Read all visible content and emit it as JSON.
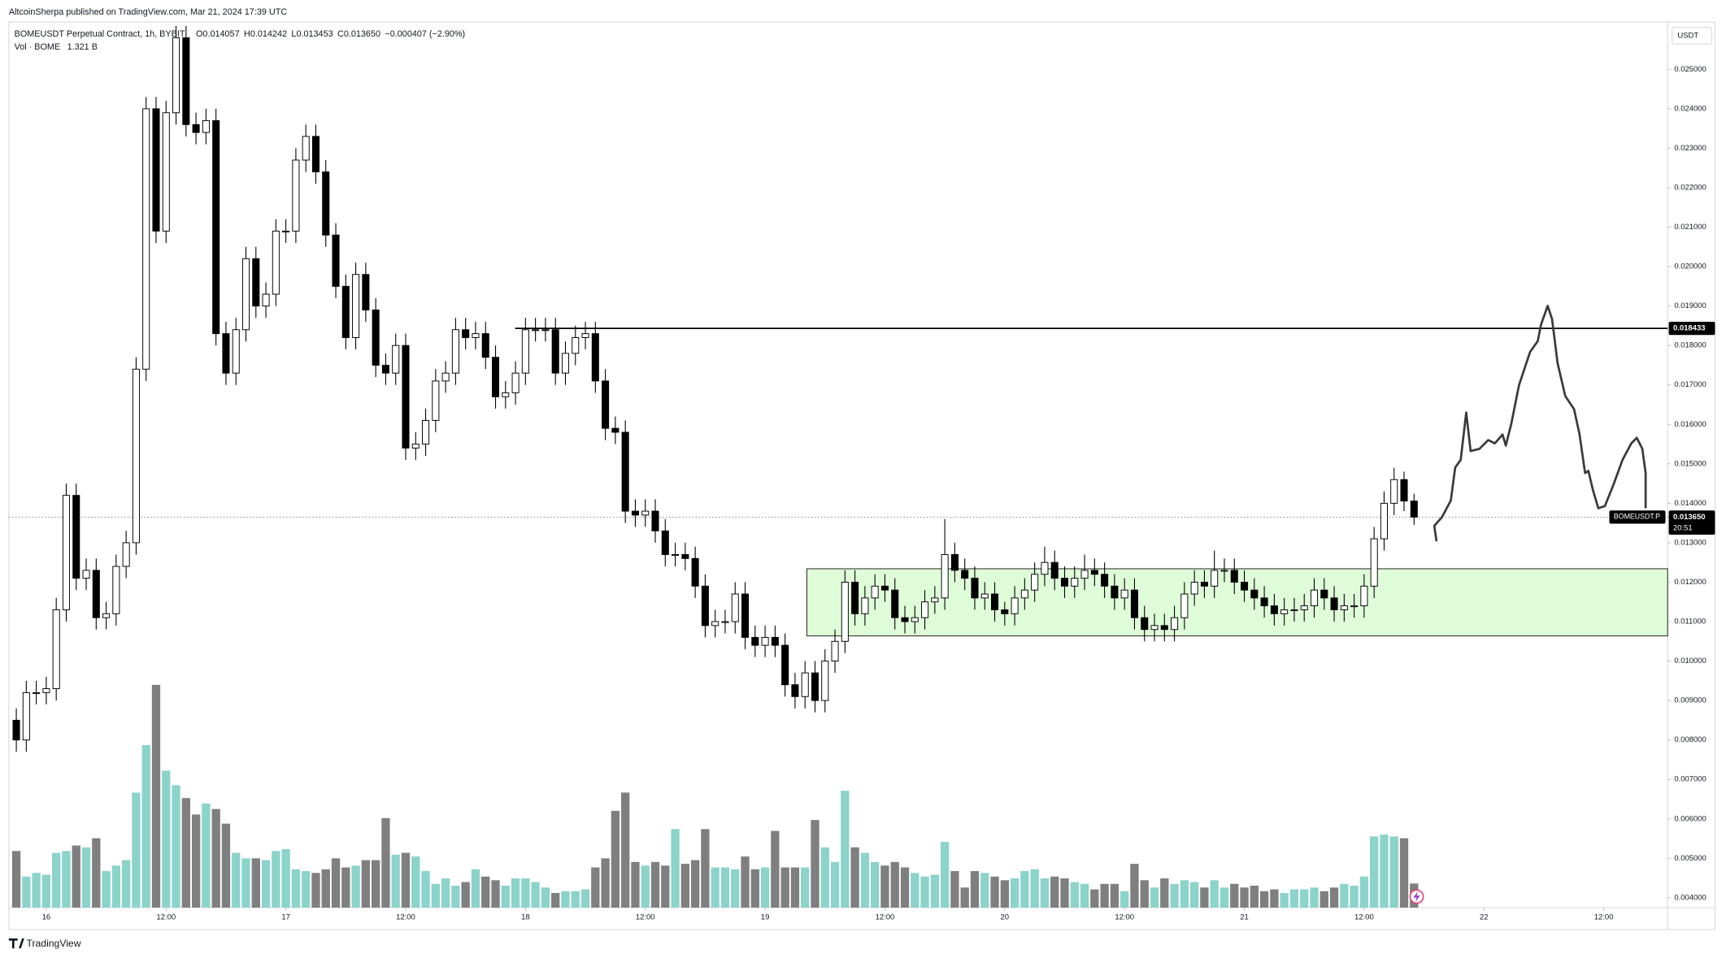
{
  "header": {
    "publisher": "AltcoinSherpa published on TradingView.com, Mar 21, 2024 17:39 UTC",
    "symbol": "BOMEUSDT Perpetual Contract, 1h, BYBIT",
    "ohlc": [
      "O0.014057",
      "H0.014242",
      "L0.013453",
      "C0.013650",
      "−0.000407 (−2.90%)"
    ],
    "volume_label": "Vol · BOME",
    "volume_value": "1.321 B"
  },
  "currency": "USDT",
  "branding": "TradingView",
  "chart_data": {
    "type": "candlestick",
    "x": [
      -3,
      -2,
      -1,
      0,
      1,
      2,
      3,
      4,
      5,
      6,
      7,
      8,
      9,
      10,
      11,
      12,
      13,
      14,
      15,
      16,
      17,
      18,
      19,
      20,
      21,
      22,
      23,
      24,
      25,
      26,
      27,
      28,
      29,
      30,
      31,
      32,
      33,
      34,
      35,
      36,
      37,
      38,
      39,
      40,
      41,
      42,
      43,
      44,
      45,
      46,
      47,
      48,
      49,
      50,
      51,
      52,
      53,
      54,
      55,
      56,
      57,
      58,
      59,
      60,
      61,
      62,
      63,
      64,
      65,
      66,
      67,
      68,
      69,
      70,
      71,
      72,
      73,
      74,
      75,
      76,
      77,
      78,
      79,
      80,
      81,
      82,
      83,
      84,
      85,
      86,
      87,
      88,
      89,
      90,
      91,
      92,
      93,
      94,
      95,
      96,
      97,
      98,
      99,
      100,
      101,
      102,
      103,
      104,
      105,
      106,
      107,
      108,
      109,
      110,
      111,
      112,
      113,
      114,
      115,
      116,
      117,
      118,
      119,
      120,
      121,
      122,
      123,
      124,
      125,
      126,
      127,
      128,
      129,
      130,
      131,
      132,
      133,
      134,
      135,
      136,
      137
    ],
    "open": [
      0.0085,
      0.008,
      0.0092,
      0.0092,
      0.0093,
      0.0113,
      0.0142,
      0.0121,
      0.0123,
      0.0111,
      0.0112,
      0.0124,
      0.013,
      0.0174,
      0.024,
      0.0209,
      0.0239,
      0.0258,
      0.0236,
      0.0234,
      0.0237,
      0.0183,
      0.0173,
      0.0184,
      0.0202,
      0.019,
      0.0193,
      0.0209,
      0.0209,
      0.0227,
      0.0233,
      0.0224,
      0.0208,
      0.0195,
      0.0182,
      0.0198,
      0.0189,
      0.0175,
      0.0173,
      0.018,
      0.0154,
      0.0155,
      0.0161,
      0.0171,
      0.0173,
      0.0184,
      0.0182,
      0.0183,
      0.0177,
      0.0167,
      0.0168,
      0.0173,
      0.0184,
      0.0184,
      0.0184,
      0.0173,
      0.0178,
      0.0182,
      0.0183,
      0.0171,
      0.0159,
      0.0158,
      0.0138,
      0.0137,
      0.0138,
      0.0133,
      0.0127,
      0.0127,
      0.0126,
      0.0119,
      0.0109,
      0.011,
      0.011,
      0.0117,
      0.0106,
      0.0104,
      0.0106,
      0.0104,
      0.0094,
      0.0091,
      0.0097,
      0.009,
      0.01,
      0.0105,
      0.012,
      0.0112,
      0.0116,
      0.0119,
      0.0118,
      0.0111,
      0.011,
      0.0111,
      0.0115,
      0.0116,
      0.0127,
      0.0123,
      0.0121,
      0.0116,
      0.0117,
      0.0113,
      0.0112,
      0.0116,
      0.0118,
      0.0122,
      0.0125,
      0.0121,
      0.0119,
      0.0121,
      0.0123,
      0.0122,
      0.0119,
      0.0116,
      0.0118,
      0.0111,
      0.0108,
      0.0109,
      0.0108,
      0.0111,
      0.0117,
      0.012,
      0.0119,
      0.0123,
      0.0123,
      0.012,
      0.0118,
      0.0116,
      0.0114,
      0.0112,
      0.0113,
      0.0113,
      0.0114,
      0.0118,
      0.0116,
      0.0113,
      0.0114,
      0.0114,
      0.0119,
      0.0131,
      0.014,
      0.0146,
      0.014057
    ],
    "high": [
      0.0088,
      0.0095,
      0.0095,
      0.0096,
      0.0116,
      0.0145,
      0.0145,
      0.0126,
      0.0126,
      0.0115,
      0.0127,
      0.0133,
      0.0177,
      0.0243,
      0.0243,
      0.0242,
      0.0261,
      0.0261,
      0.0239,
      0.024,
      0.024,
      0.0186,
      0.0187,
      0.0205,
      0.0205,
      0.0196,
      0.0212,
      0.0212,
      0.023,
      0.0236,
      0.0236,
      0.0227,
      0.0211,
      0.0198,
      0.0201,
      0.0201,
      0.0192,
      0.0178,
      0.0183,
      0.0183,
      0.0158,
      0.0164,
      0.0174,
      0.0176,
      0.0187,
      0.0187,
      0.0186,
      0.0186,
      0.018,
      0.0171,
      0.0176,
      0.0187,
      0.0187,
      0.0187,
      0.0187,
      0.0181,
      0.0185,
      0.0186,
      0.0186,
      0.0174,
      0.0162,
      0.0161,
      0.0141,
      0.0141,
      0.0141,
      0.0136,
      0.013,
      0.013,
      0.0129,
      0.0122,
      0.0113,
      0.0113,
      0.012,
      0.012,
      0.0109,
      0.0109,
      0.0109,
      0.0107,
      0.0097,
      0.01,
      0.01,
      0.0103,
      0.0108,
      0.0123,
      0.0123,
      0.0119,
      0.0122,
      0.0122,
      0.0121,
      0.0114,
      0.0114,
      0.0118,
      0.0119,
      0.0136,
      0.013,
      0.0126,
      0.0124,
      0.012,
      0.012,
      0.0115,
      0.0119,
      0.0121,
      0.0125,
      0.0129,
      0.0128,
      0.0124,
      0.0124,
      0.0127,
      0.0126,
      0.0125,
      0.0122,
      0.0121,
      0.0121,
      0.0114,
      0.0112,
      0.0112,
      0.0114,
      0.012,
      0.0123,
      0.0123,
      0.0128,
      0.0126,
      0.0126,
      0.0123,
      0.0121,
      0.0119,
      0.0117,
      0.0116,
      0.0116,
      0.0117,
      0.0121,
      0.0121,
      0.0119,
      0.0117,
      0.0117,
      0.0122,
      0.0134,
      0.0143,
      0.0149,
      0.0148,
      0.014242
    ],
    "low": [
      0.0077,
      0.0077,
      0.0089,
      0.0089,
      0.009,
      0.011,
      0.0118,
      0.0118,
      0.0108,
      0.0108,
      0.0109,
      0.0121,
      0.0127,
      0.0171,
      0.0206,
      0.0206,
      0.0236,
      0.0233,
      0.0231,
      0.0231,
      0.018,
      0.017,
      0.017,
      0.0181,
      0.0187,
      0.0187,
      0.019,
      0.0206,
      0.0206,
      0.0224,
      0.0221,
      0.0205,
      0.0192,
      0.0179,
      0.0179,
      0.0186,
      0.0172,
      0.017,
      0.017,
      0.0151,
      0.0151,
      0.0152,
      0.0158,
      0.0168,
      0.017,
      0.0179,
      0.0179,
      0.0174,
      0.0164,
      0.0164,
      0.0165,
      0.017,
      0.0181,
      0.0181,
      0.017,
      0.017,
      0.0175,
      0.0179,
      0.0168,
      0.0156,
      0.0155,
      0.0135,
      0.0134,
      0.0134,
      0.013,
      0.0124,
      0.0124,
      0.0123,
      0.0116,
      0.0106,
      0.0106,
      0.0107,
      0.0107,
      0.0103,
      0.0101,
      0.0101,
      0.0101,
      0.0091,
      0.0088,
      0.0088,
      0.0087,
      0.0087,
      0.0097,
      0.0102,
      0.0109,
      0.0109,
      0.0113,
      0.0115,
      0.0108,
      0.0107,
      0.0107,
      0.0108,
      0.0112,
      0.0113,
      0.012,
      0.0118,
      0.0113,
      0.0113,
      0.011,
      0.0109,
      0.0109,
      0.0113,
      0.0115,
      0.0119,
      0.0118,
      0.0116,
      0.0116,
      0.0118,
      0.0119,
      0.0116,
      0.0113,
      0.0113,
      0.0108,
      0.0105,
      0.0105,
      0.0105,
      0.0105,
      0.0108,
      0.0114,
      0.0116,
      0.0116,
      0.012,
      0.0117,
      0.0115,
      0.0113,
      0.0111,
      0.0109,
      0.0109,
      0.011,
      0.011,
      0.0111,
      0.0113,
      0.011,
      0.011,
      0.0111,
      0.0111,
      0.0116,
      0.0128,
      0.0137,
      0.0138,
      0.013453
    ],
    "close": [
      0.008,
      0.0092,
      0.0092,
      0.0093,
      0.0113,
      0.0142,
      0.0121,
      0.0123,
      0.0111,
      0.0112,
      0.0124,
      0.013,
      0.0174,
      0.024,
      0.0209,
      0.0239,
      0.0258,
      0.0236,
      0.0234,
      0.0237,
      0.0183,
      0.0173,
      0.0184,
      0.0202,
      0.019,
      0.0193,
      0.0209,
      0.0209,
      0.0227,
      0.0233,
      0.0224,
      0.0208,
      0.0195,
      0.0182,
      0.0198,
      0.0189,
      0.0175,
      0.0173,
      0.018,
      0.0154,
      0.0155,
      0.0161,
      0.0171,
      0.0173,
      0.0184,
      0.0182,
      0.0183,
      0.0177,
      0.0167,
      0.0168,
      0.0173,
      0.0184,
      0.0184,
      0.0184,
      0.0173,
      0.0178,
      0.0182,
      0.0183,
      0.0171,
      0.0159,
      0.0158,
      0.0138,
      0.0137,
      0.0138,
      0.0133,
      0.0127,
      0.0127,
      0.0126,
      0.0119,
      0.0109,
      0.011,
      0.011,
      0.0117,
      0.0106,
      0.0104,
      0.0106,
      0.0104,
      0.0094,
      0.0091,
      0.0097,
      0.009,
      0.01,
      0.0105,
      0.012,
      0.0112,
      0.0116,
      0.0119,
      0.0118,
      0.0111,
      0.011,
      0.0111,
      0.0115,
      0.0116,
      0.0127,
      0.0123,
      0.0121,
      0.0116,
      0.0117,
      0.0113,
      0.0112,
      0.0116,
      0.0118,
      0.0122,
      0.0125,
      0.0121,
      0.0119,
      0.0121,
      0.0123,
      0.0122,
      0.0119,
      0.0116,
      0.0118,
      0.0111,
      0.0108,
      0.0109,
      0.0108,
      0.0111,
      0.0117,
      0.012,
      0.0119,
      0.0123,
      0.0123,
      0.012,
      0.0118,
      0.0116,
      0.0114,
      0.0112,
      0.0113,
      0.0113,
      0.0114,
      0.0118,
      0.0116,
      0.0113,
      0.0114,
      0.0114,
      0.0119,
      0.0131,
      0.014,
      0.0146,
      0.014057,
      0.01365
    ],
    "volume": [
      3.1,
      1.7,
      1.9,
      1.8,
      3.0,
      3.1,
      3.4,
      3.3,
      3.8,
      2.0,
      2.3,
      2.6,
      6.3,
      8.9,
      12.2,
      7.5,
      6.7,
      6.0,
      5.1,
      5.7,
      5.4,
      4.6,
      3.0,
      2.7,
      2.7,
      2.6,
      3.1,
      3.2,
      2.1,
      2.0,
      1.9,
      2.1,
      2.7,
      2.2,
      2.3,
      2.6,
      2.6,
      4.9,
      2.9,
      3.0,
      2.8,
      2.0,
      1.3,
      1.6,
      1.2,
      1.4,
      2.1,
      1.7,
      1.5,
      1.2,
      1.6,
      1.6,
      1.4,
      1.1,
      0.8,
      0.9,
      0.9,
      1.0,
      2.2,
      2.7,
      5.3,
      6.3,
      2.5,
      2.3,
      2.5,
      2.3,
      4.3,
      2.4,
      2.6,
      4.3,
      2.2,
      2.2,
      2.1,
      2.8,
      2.1,
      2.2,
      4.2,
      2.2,
      2.2,
      2.2,
      4.8,
      3.3,
      2.5,
      6.4,
      3.3,
      3.0,
      2.5,
      2.3,
      2.5,
      2.2,
      1.9,
      1.7,
      1.8,
      3.6,
      2.0,
      1.1,
      2.0,
      1.9,
      1.7,
      1.5,
      1.6,
      2.0,
      2.1,
      1.6,
      1.7,
      1.6,
      1.4,
      1.3,
      1.0,
      1.3,
      1.3,
      0.9,
      2.4,
      1.5,
      1.1,
      1.6,
      1.3,
      1.5,
      1.4,
      1.1,
      1.5,
      1.1,
      1.3,
      1.1,
      1.2,
      0.9,
      1.0,
      0.8,
      1.0,
      1.0,
      1.1,
      0.9,
      1.1,
      1.3,
      1.2,
      1.7,
      3.9,
      4.0,
      3.9,
      3.8,
      1.321
    ],
    "xlim": [
      -3.75,
      162.4
    ],
    "ylim": [
      0.00375,
      0.0262
    ],
    "volume_ylim": [
      0,
      48.5
    ],
    "xticks": [
      {
        "value": 0,
        "label": "16"
      },
      {
        "value": 12,
        "label": "12:00"
      },
      {
        "value": 24,
        "label": "17"
      },
      {
        "value": 36,
        "label": "12:00"
      },
      {
        "value": 48,
        "label": "18"
      },
      {
        "value": 60,
        "label": "12:00"
      },
      {
        "value": 72,
        "label": "19"
      },
      {
        "value": 84,
        "label": "12:00"
      },
      {
        "value": 96,
        "label": "20"
      },
      {
        "value": 108,
        "label": "12:00"
      },
      {
        "value": 120,
        "label": "21"
      },
      {
        "value": 132,
        "label": "12:00"
      },
      {
        "value": 144,
        "label": "22"
      },
      {
        "value": 156,
        "label": "12:00"
      }
    ],
    "yticks": [
      {
        "value": 0.004,
        "label": "0.004000"
      },
      {
        "value": 0.005,
        "label": "0.005000"
      },
      {
        "value": 0.006,
        "label": "0.006000"
      },
      {
        "value": 0.007,
        "label": "0.007000"
      },
      {
        "value": 0.008,
        "label": "0.008000"
      },
      {
        "value": 0.009,
        "label": "0.009000"
      },
      {
        "value": 0.01,
        "label": "0.010000"
      },
      {
        "value": 0.011,
        "label": "0.011000"
      },
      {
        "value": 0.012,
        "label": "0.012000"
      },
      {
        "value": 0.013,
        "label": "0.013000"
      },
      {
        "value": 0.014,
        "label": "0.014000"
      },
      {
        "value": 0.015,
        "label": "0.015000"
      },
      {
        "value": 0.016,
        "label": "0.016000"
      },
      {
        "value": 0.017,
        "label": "0.017000"
      },
      {
        "value": 0.018,
        "label": "0.018000"
      },
      {
        "value": 0.019,
        "label": "0.019000"
      },
      {
        "value": 0.02,
        "label": "0.020000"
      },
      {
        "value": 0.021,
        "label": "0.021000"
      },
      {
        "value": 0.022,
        "label": "0.022000"
      },
      {
        "value": 0.023,
        "label": "0.023000"
      },
      {
        "value": 0.024,
        "label": "0.024000"
      },
      {
        "value": 0.025,
        "label": "0.025000"
      }
    ],
    "up_color": "#ffffff",
    "down_color": "#000000",
    "up_volume_color": "#8cd3ca",
    "down_volume_color": "#7f7f7f",
    "level": {
      "value": 0.018433,
      "label": "0.018433"
    },
    "last_price": {
      "value": 0.01365,
      "label": "0.013650"
    },
    "symbol_tag": "BOMEUSDT.P",
    "countdown": "20:51"
  }
}
